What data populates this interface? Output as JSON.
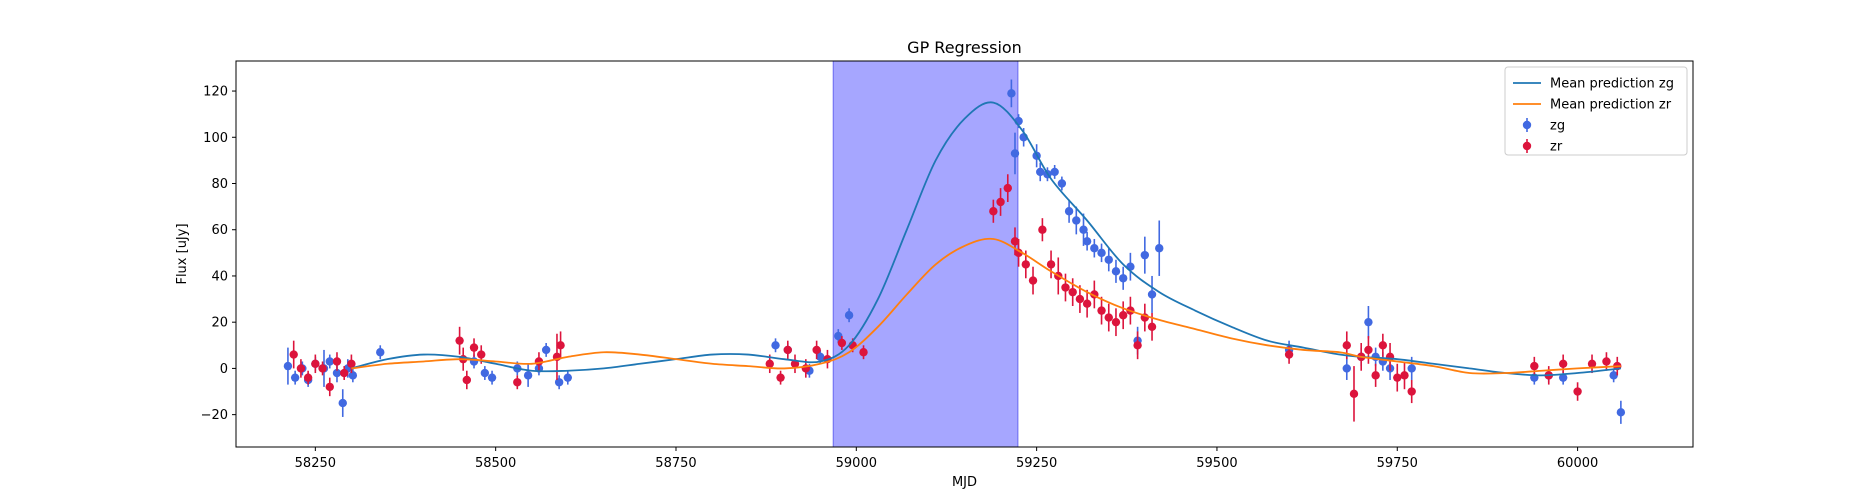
{
  "chart_data": {
    "type": "scatter",
    "title": "GP Regression",
    "xlabel": "MJD",
    "ylabel": "Flux [uJy]",
    "xlim": [
      58140,
      60160
    ],
    "ylim": [
      -34,
      133
    ],
    "xticks": [
      58250,
      58500,
      58750,
      59000,
      59250,
      59500,
      59750,
      60000
    ],
    "yticks": [
      -20,
      0,
      20,
      40,
      60,
      80,
      100,
      120
    ],
    "grid": false,
    "legend_position": "top-right",
    "shaded_region": {
      "x_start": 58968,
      "x_end": 59224,
      "color": "#a6a6ff"
    },
    "colors": {
      "zg_line": "#1f77b4",
      "zr_line": "#ff7f0e",
      "zg_points": "#4169e1",
      "zr_points": "#dc143c"
    },
    "lines": [
      {
        "name": "Mean prediction zg",
        "color": "#1f77b4",
        "x": [
          58300,
          58350,
          58400,
          58450,
          58500,
          58550,
          58600,
          58650,
          58700,
          58750,
          58800,
          58850,
          58900,
          58950,
          58990,
          59030,
          59070,
          59110,
          59150,
          59190,
          59230,
          59270,
          59320,
          59370,
          59420,
          59470,
          59520,
          59570,
          59620,
          59670,
          59700,
          59750,
          59800,
          59850,
          59900,
          59950,
          60000,
          60060
        ],
        "y": [
          0,
          4,
          6,
          5,
          2,
          -1,
          -1,
          0,
          2,
          4,
          6,
          6,
          4,
          3,
          10,
          30,
          60,
          90,
          108,
          115,
          103,
          82,
          64,
          45,
          33,
          25,
          18,
          12,
          9,
          6,
          5,
          4,
          2,
          0,
          -2,
          -3,
          -2,
          0
        ]
      },
      {
        "name": "Mean prediction zr",
        "color": "#ff7f0e",
        "x": [
          58300,
          58350,
          58400,
          58450,
          58500,
          58550,
          58600,
          58650,
          58700,
          58750,
          58800,
          58850,
          58900,
          58950,
          58990,
          59030,
          59070,
          59110,
          59150,
          59190,
          59230,
          59270,
          59320,
          59370,
          59420,
          59470,
          59520,
          59570,
          59620,
          59670,
          59700,
          59750,
          59800,
          59850,
          59900,
          59950,
          60000,
          60060
        ],
        "y": [
          0,
          2,
          3,
          4,
          3,
          2,
          5,
          7,
          6,
          4,
          2,
          1,
          0,
          2,
          7,
          18,
          32,
          45,
          53,
          56,
          50,
          42,
          33,
          26,
          21,
          17,
          13,
          10,
          8,
          7,
          5,
          3,
          1,
          -2,
          -2,
          -1,
          0,
          1
        ]
      }
    ],
    "series": [
      {
        "name": "zg",
        "color": "#4169e1",
        "x": [
          58212,
          58222,
          58232,
          58240,
          58250,
          58262,
          58270,
          58280,
          58288,
          58295,
          58302,
          58340,
          58470,
          58485,
          58495,
          58530,
          58545,
          58560,
          58570,
          58588,
          58600,
          58888,
          58905,
          58935,
          58950,
          58975,
          58990,
          59215,
          59220,
          59225,
          59232,
          59250,
          59255,
          59265,
          59275,
          59285,
          59295,
          59305,
          59315,
          59320,
          59330,
          59340,
          59350,
          59360,
          59370,
          59380,
          59390,
          59400,
          59410,
          59420,
          59600,
          59680,
          59700,
          59710,
          59720,
          59730,
          59740,
          59770,
          59940,
          59960,
          59980,
          60050,
          60060
        ],
        "y": [
          1,
          -4,
          0,
          -5,
          2,
          0,
          3,
          -2,
          -15,
          0,
          -3,
          7,
          3,
          -2,
          -4,
          0,
          -3,
          0,
          8,
          -6,
          -4,
          10,
          8,
          -1,
          5,
          14,
          23,
          119,
          93,
          107,
          100,
          92,
          85,
          84,
          85,
          80,
          68,
          64,
          60,
          55,
          52,
          50,
          47,
          42,
          39,
          44,
          12,
          49,
          32,
          52,
          8,
          0,
          5,
          20,
          5,
          3,
          0,
          0,
          -4,
          -3,
          -4,
          -3,
          -19
        ],
        "err": [
          8,
          3,
          3,
          3,
          3,
          8,
          3,
          4,
          6,
          4,
          3,
          3,
          3,
          3,
          3,
          3,
          5,
          3,
          3,
          3,
          3,
          3,
          3,
          3,
          3,
          3,
          3,
          6,
          9,
          3,
          4,
          5,
          4,
          3,
          3,
          3,
          5,
          6,
          7,
          4,
          4,
          4,
          5,
          5,
          5,
          6,
          6,
          8,
          8,
          12,
          4,
          5,
          4,
          7,
          4,
          4,
          5,
          5,
          3,
          3,
          3,
          3,
          5
        ]
      },
      {
        "name": "zr",
        "color": "#dc143c",
        "x": [
          58220,
          58230,
          58240,
          58250,
          58260,
          58270,
          58280,
          58290,
          58300,
          58450,
          58455,
          58460,
          58470,
          58480,
          58530,
          58560,
          58585,
          58590,
          58880,
          58895,
          58905,
          58915,
          58930,
          58945,
          58960,
          58980,
          58995,
          59010,
          59190,
          59200,
          59210,
          59220,
          59225,
          59235,
          59245,
          59258,
          59270,
          59280,
          59290,
          59300,
          59310,
          59320,
          59330,
          59340,
          59350,
          59360,
          59370,
          59380,
          59390,
          59400,
          59410,
          59600,
          59680,
          59690,
          59700,
          59710,
          59720,
          59730,
          59740,
          59750,
          59760,
          59770,
          59940,
          59960,
          59980,
          60000,
          60020,
          60040,
          60055
        ],
        "y": [
          6,
          0,
          -4,
          2,
          0,
          -8,
          3,
          -2,
          2,
          12,
          4,
          -5,
          9,
          6,
          -6,
          3,
          5,
          10,
          2,
          -4,
          8,
          2,
          0,
          8,
          4,
          11,
          10,
          7,
          68,
          72,
          78,
          55,
          50,
          45,
          38,
          60,
          45,
          40,
          35,
          33,
          30,
          28,
          32,
          25,
          22,
          20,
          23,
          25,
          10,
          22,
          18,
          6,
          10,
          -11,
          5,
          8,
          -3,
          10,
          5,
          -4,
          -3,
          -10,
          1,
          -3,
          2,
          -10,
          2,
          3,
          1
        ],
        "err": [
          6,
          4,
          3,
          4,
          3,
          4,
          4,
          3,
          4,
          6,
          5,
          4,
          4,
          4,
          3,
          4,
          10,
          6,
          4,
          3,
          4,
          4,
          4,
          4,
          4,
          3,
          3,
          3,
          5,
          6,
          6,
          6,
          6,
          6,
          6,
          5,
          6,
          8,
          6,
          6,
          6,
          6,
          6,
          6,
          6,
          6,
          6,
          6,
          6,
          6,
          6,
          4,
          6,
          12,
          6,
          6,
          5,
          5,
          6,
          6,
          6,
          5,
          4,
          4,
          4,
          4,
          4,
          4,
          4
        ]
      }
    ]
  }
}
